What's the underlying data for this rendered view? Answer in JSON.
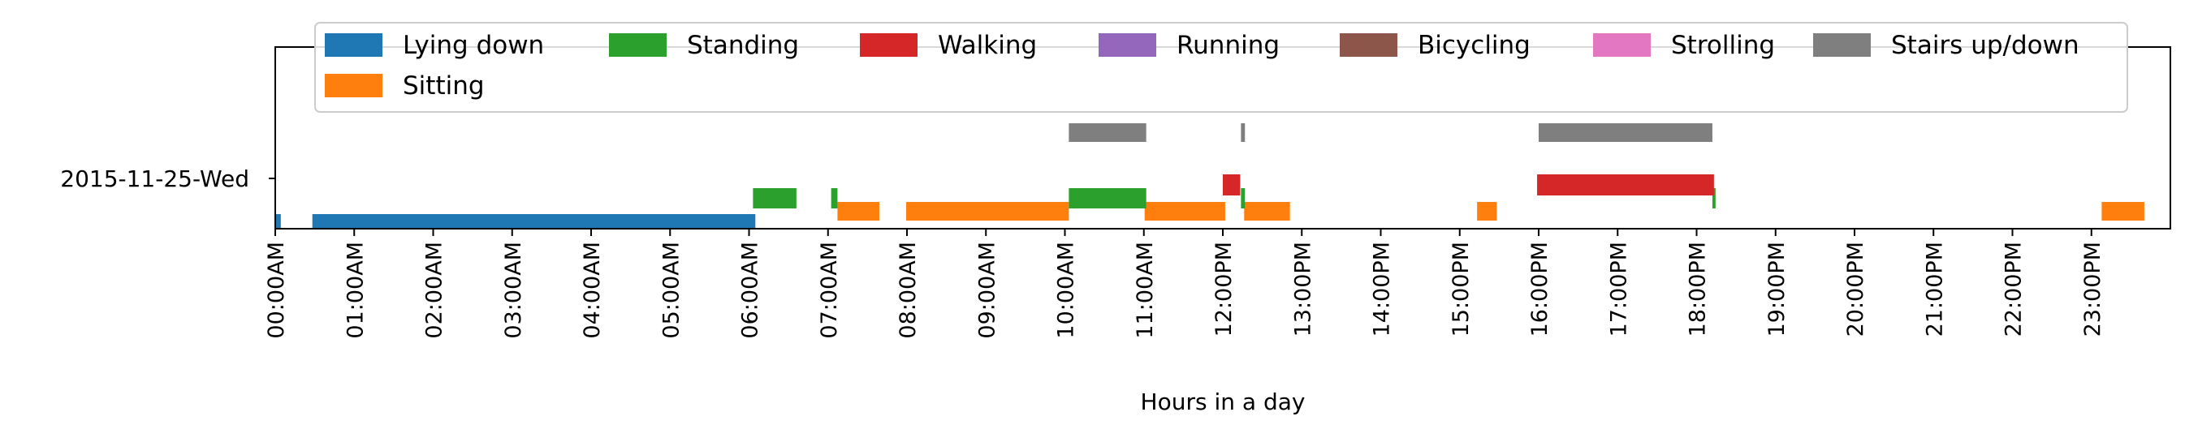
{
  "chart_data": {
    "type": "timeline",
    "xlabel": "Hours in a day",
    "ylabel": "",
    "xlim": [
      0,
      24
    ],
    "x_ticks": [
      "00:00AM",
      "01:00AM",
      "02:00AM",
      "03:00AM",
      "04:00AM",
      "05:00AM",
      "06:00AM",
      "07:00AM",
      "08:00AM",
      "09:00AM",
      "10:00AM",
      "11:00AM",
      "12:00PM",
      "13:00PM",
      "14:00PM",
      "15:00PM",
      "16:00PM",
      "17:00PM",
      "18:00PM",
      "19:00PM",
      "20:00PM",
      "21:00PM",
      "22:00PM",
      "23:00PM"
    ],
    "day_label": "2015-11-25-Wed",
    "legend": {
      "placement": "top",
      "columns": 7
    },
    "series": [
      {
        "name": "Lying down",
        "color": "#1f77b4",
        "segments": [
          [
            0.0,
            0.07
          ],
          [
            0.47,
            6.08
          ]
        ]
      },
      {
        "name": "Sitting",
        "color": "#ff7f0e",
        "segments": [
          [
            7.12,
            7.65
          ],
          [
            7.99,
            10.05
          ],
          [
            11.01,
            12.03
          ],
          [
            12.27,
            12.85
          ],
          [
            15.22,
            15.47
          ],
          [
            23.13,
            23.67
          ]
        ]
      },
      {
        "name": "Standing",
        "color": "#2ca02c",
        "segments": [
          [
            6.05,
            6.6
          ],
          [
            7.04,
            7.12
          ],
          [
            10.05,
            11.03
          ],
          [
            12.23,
            12.28
          ],
          [
            18.2,
            18.24
          ]
        ]
      },
      {
        "name": "Walking",
        "color": "#d62728",
        "segments": [
          [
            12.0,
            12.22
          ],
          [
            15.98,
            18.22
          ]
        ]
      },
      {
        "name": "Running",
        "color": "#9467bd",
        "segments": []
      },
      {
        "name": "Bicycling",
        "color": "#8c564b",
        "segments": []
      },
      {
        "name": "Strolling",
        "color": "#e377c2",
        "segments": []
      },
      {
        "name": "Stairs up/down",
        "color": "#7f7f7f",
        "segments": [
          [
            10.05,
            11.03
          ],
          [
            12.23,
            12.28
          ],
          [
            16.0,
            18.2
          ]
        ]
      }
    ]
  }
}
